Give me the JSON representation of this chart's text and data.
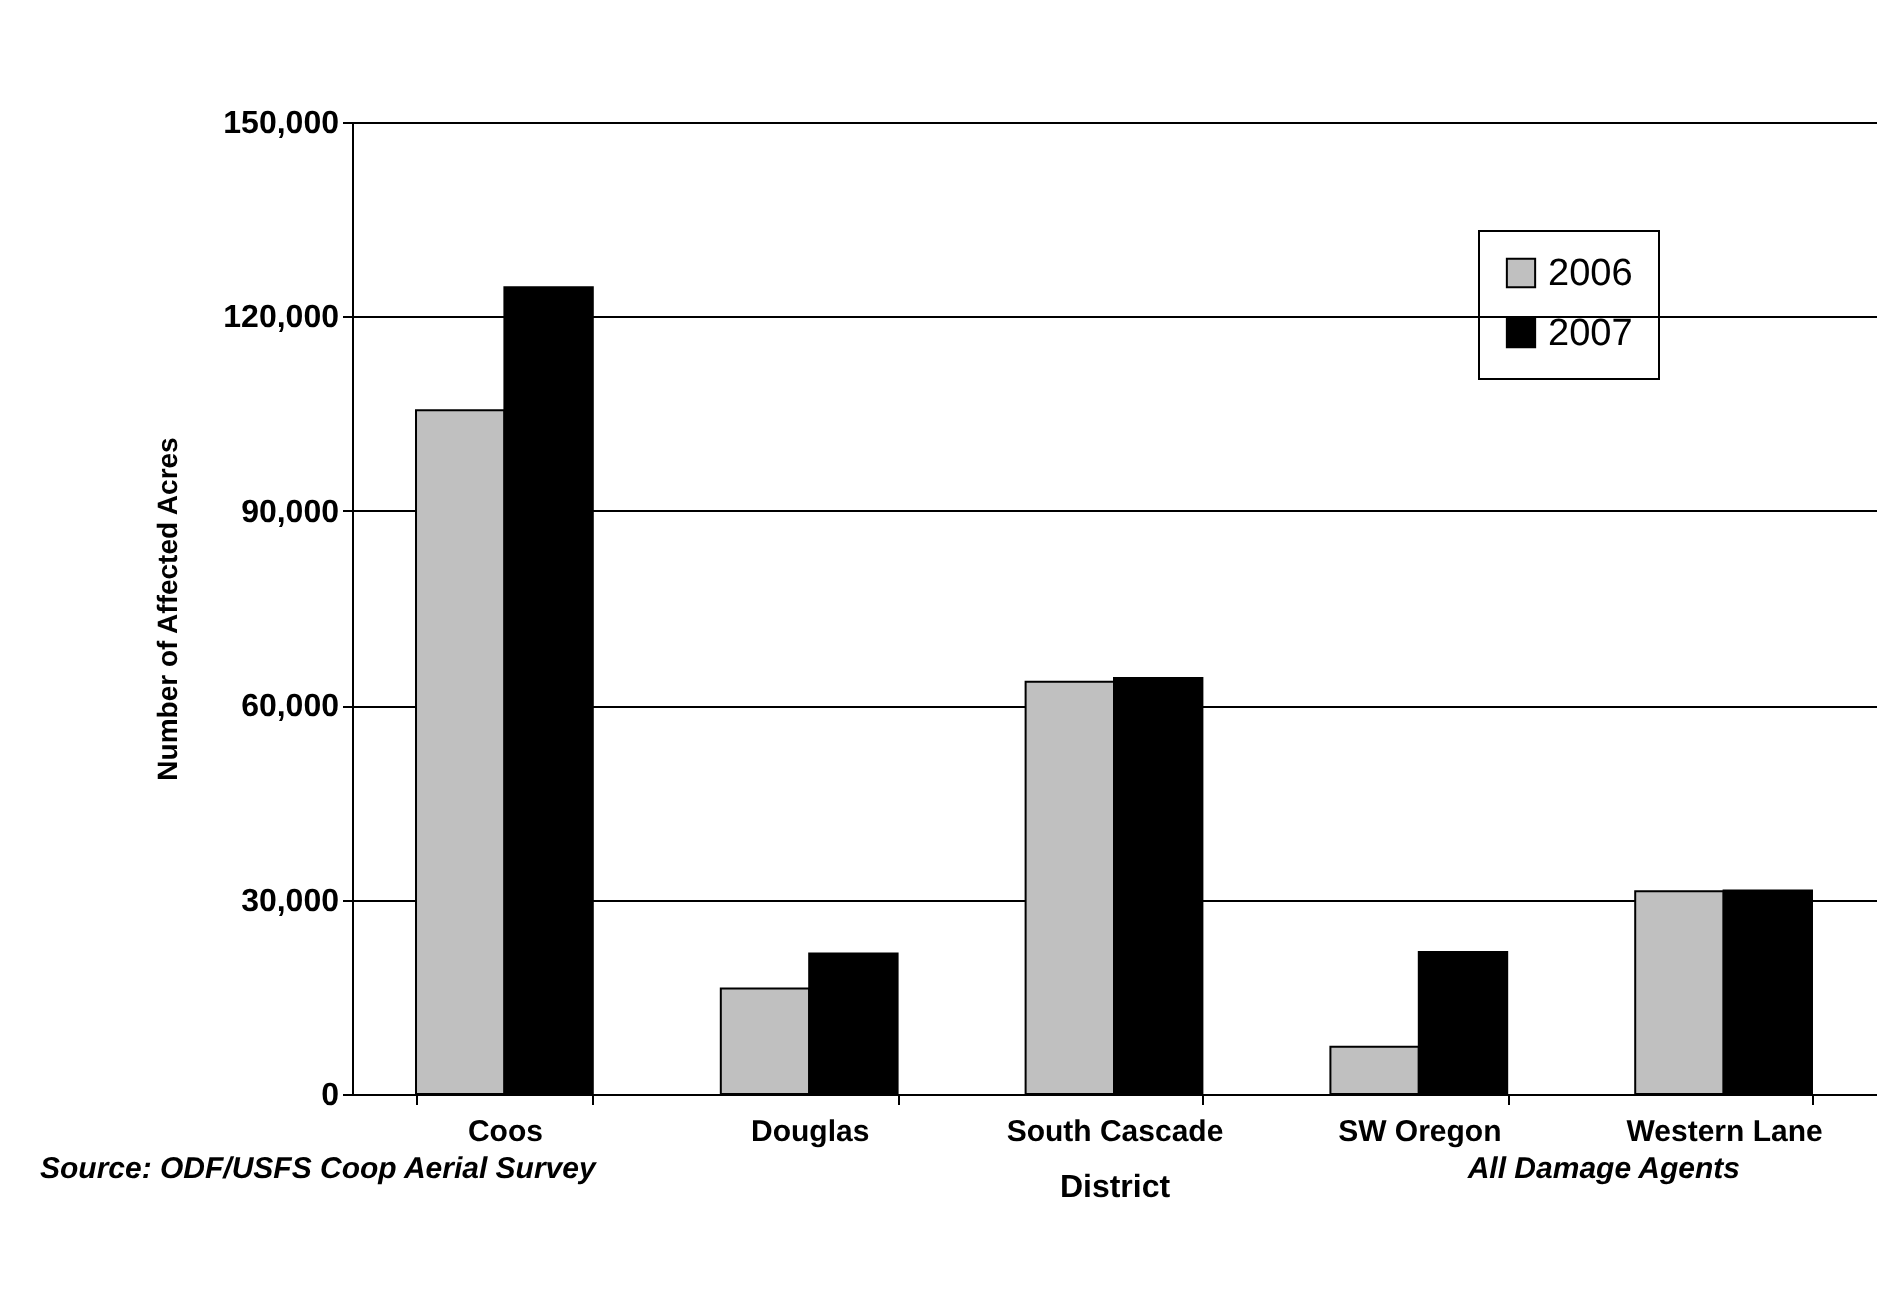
{
  "chart_data": {
    "type": "bar",
    "xlabel": "District",
    "ylabel": "Number of Affected Acres",
    "categories": [
      "Coos",
      "Douglas",
      "South Cascade",
      "SW Oregon",
      "Western Lane"
    ],
    "series": [
      {
        "name": "2006",
        "color": "#c0c0c0",
        "values": [
          105500,
          16300,
          63600,
          7300,
          31300
        ]
      },
      {
        "name": "2007",
        "color": "#000000",
        "values": [
          124500,
          21700,
          64200,
          21900,
          31400
        ]
      }
    ],
    "ylim": [
      0,
      150000
    ],
    "yticks": [
      {
        "value": 0,
        "label": "0"
      },
      {
        "value": 30000,
        "label": "30,000"
      },
      {
        "value": 60000,
        "label": "60,000"
      },
      {
        "value": 90000,
        "label": "90,000"
      },
      {
        "value": 120000,
        "label": "120,000"
      },
      {
        "value": 150000,
        "label": "150,000"
      }
    ],
    "grid": "y",
    "legend": "top right",
    "annotations": [
      "Source: ODF/USFS Coop Aerial Survey",
      "All Damage Agents"
    ]
  }
}
